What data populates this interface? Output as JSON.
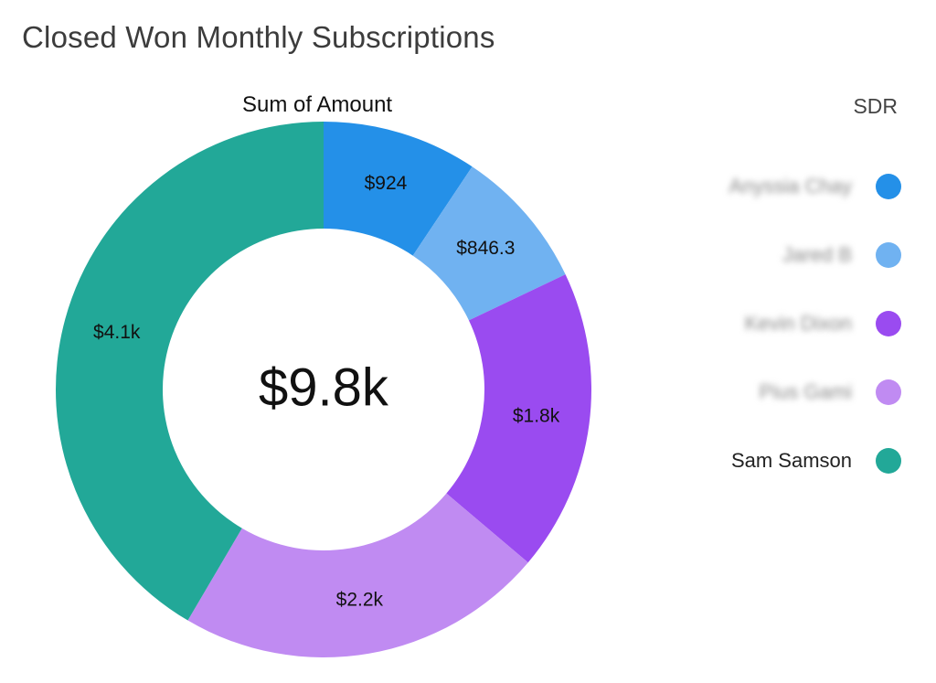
{
  "chart_data": {
    "type": "pie",
    "title": "Closed Won Monthly Subscriptions",
    "subtitle": "Sum of Amount",
    "total_label": "$9.8k",
    "legend_title": "SDR",
    "legend_position": "right",
    "categories": [
      "Anyssia Chay",
      "Jared B",
      "Kevin Dixon",
      "Pius Gami",
      "Sam Samson"
    ],
    "values": [
      924,
      846.3,
      1800,
      2200,
      4100
    ],
    "value_labels": [
      "$924",
      "$846.3",
      "$1.8k",
      "$2.2k",
      "$4.1k"
    ],
    "colors": [
      "#2490e8",
      "#70b2f1",
      "#9a4bf0",
      "#c08bf2",
      "#22a898"
    ],
    "blurred_labels": [
      true,
      true,
      true,
      true,
      false
    ]
  }
}
